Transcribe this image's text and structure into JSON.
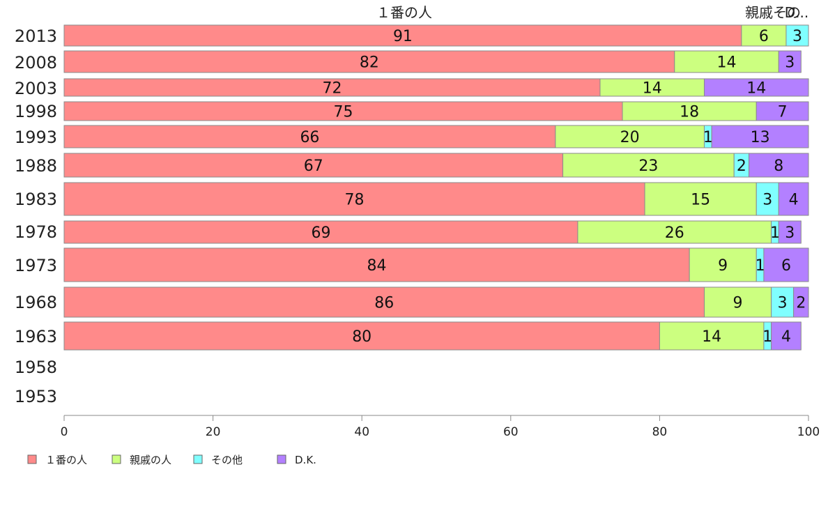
{
  "chart_data": {
    "type": "bar",
    "orientation": "horizontal",
    "stacked": true,
    "categories": [
      "2013",
      "2008",
      "2003",
      "1998",
      "1993",
      "1988",
      "1983",
      "1978",
      "1973",
      "1968",
      "1963",
      "1958",
      "1953"
    ],
    "series": [
      {
        "name": "１番の人",
        "color": "#ff8a8a",
        "values": [
          91,
          82,
          72,
          75,
          66,
          67,
          78,
          69,
          84,
          86,
          80,
          null,
          null
        ]
      },
      {
        "name": "親戚の人",
        "color": "#ccff80",
        "values": [
          6,
          14,
          14,
          18,
          20,
          23,
          15,
          26,
          9,
          9,
          14,
          null,
          null
        ]
      },
      {
        "name": "その他",
        "color": "#80ffff",
        "values": [
          3,
          0,
          0,
          0,
          1,
          2,
          3,
          1,
          1,
          3,
          1,
          null,
          null
        ]
      },
      {
        "name": "D.K.",
        "color": "#b380ff",
        "values": [
          0,
          3,
          14,
          7,
          13,
          8,
          4,
          3,
          6,
          2,
          4,
          null,
          null
        ]
      }
    ],
    "top_labels": [
      "１番の人",
      "親戚その",
      "D..."
    ],
    "xlim": [
      0,
      100
    ],
    "xticks": [
      0,
      20,
      40,
      60,
      80,
      100
    ],
    "legend_position": "bottom-left",
    "grid": false
  }
}
